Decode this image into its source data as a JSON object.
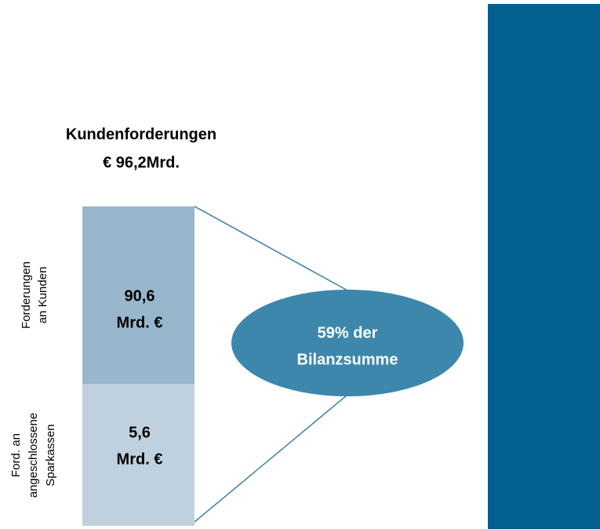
{
  "header": {
    "lines": [
      "Kundenforderungen",
      "€ 96,2Mrd."
    ]
  },
  "segments": [
    {
      "label_lines": [
        "Forderungen",
        "an Kunden"
      ],
      "value_lines": [
        "90,6",
        "Mrd. €"
      ]
    },
    {
      "label_lines": [
        "Ford. an",
        "angeschlossene",
        "Sparkassen"
      ],
      "value_lines": [
        "5,6",
        "Mrd. €"
      ]
    }
  ],
  "callout": {
    "lines": [
      "59% der",
      "Bilanzsumme"
    ]
  }
}
